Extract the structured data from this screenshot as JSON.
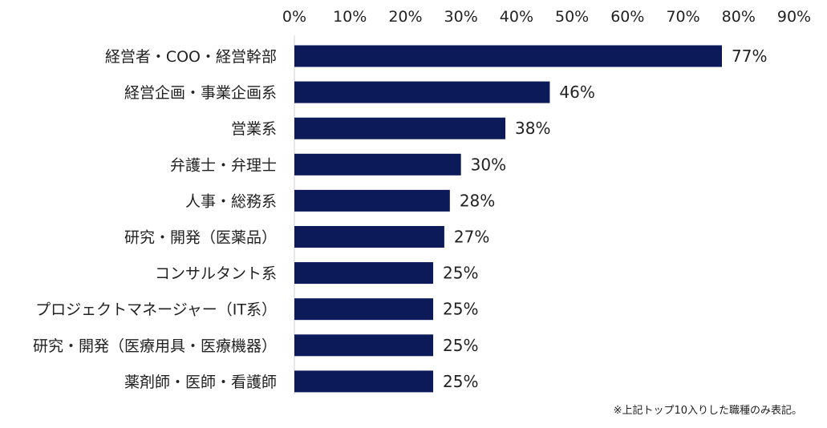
{
  "chart_data": {
    "type": "bar",
    "orientation": "horizontal",
    "categories": [
      "経営者・COO・経営幹部",
      "経営企画・事業企画系",
      "営業系",
      "弁護士・弁理士",
      "人事・総務系",
      "研究・開発（医薬品）",
      "コンサルタント系",
      "プロジェクトマネージャー（IT系）",
      "研究・開発（医療用具・医療機器）",
      "薬剤師・医師・看護師"
    ],
    "values": [
      77,
      46,
      38,
      30,
      28,
      27,
      25,
      25,
      25,
      25
    ],
    "value_labels": [
      "77%",
      "46%",
      "38%",
      "30%",
      "28%",
      "27%",
      "25%",
      "25%",
      "25%",
      "25%"
    ],
    "xlim": [
      0,
      90
    ],
    "xticks": [
      0,
      10,
      20,
      30,
      40,
      50,
      60,
      70,
      80,
      90
    ],
    "xtick_labels": [
      "0%",
      "10%",
      "20%",
      "30%",
      "40%",
      "50%",
      "60%",
      "70%",
      "80%",
      "90%"
    ],
    "axis_position": "top",
    "grid": false,
    "bar_color": "#0d1a5a",
    "note": "※上記トップ10入りした職種のみ表記。"
  }
}
